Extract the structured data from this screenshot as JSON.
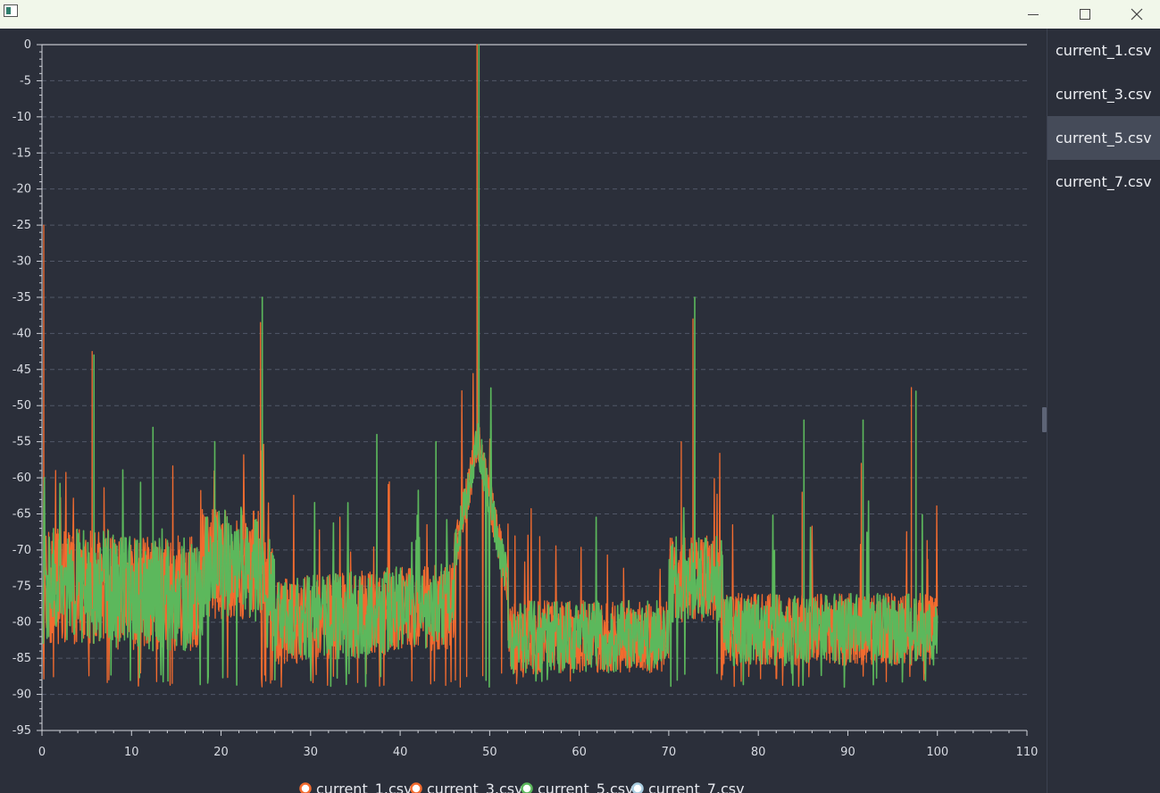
{
  "window": {
    "controls": {
      "minimize_icon": "minimize-icon",
      "maximize_icon": "maximize-icon",
      "close_icon": "close-icon"
    }
  },
  "file_list": {
    "items": [
      {
        "label": "current_1.csv",
        "selected": false
      },
      {
        "label": "current_3.csv",
        "selected": false
      },
      {
        "label": "current_5.csv",
        "selected": true
      },
      {
        "label": "current_7.csv",
        "selected": false
      }
    ]
  },
  "colors": {
    "series_orange": "#f26b2f",
    "series_green": "#5cb85c",
    "series_light_blue": "#a9cde0",
    "grid": "#525868",
    "axis": "#d0d3da",
    "background": "#2b2f3a"
  },
  "chart_data": {
    "type": "line",
    "title": "",
    "xlabel": "",
    "ylabel": "",
    "xlim": [
      0,
      110
    ],
    "ylim": [
      -95,
      0
    ],
    "x_ticks": [
      0,
      10,
      20,
      30,
      40,
      50,
      60,
      70,
      80,
      90,
      100,
      110
    ],
    "y_ticks": [
      0,
      -5,
      -10,
      -15,
      -20,
      -25,
      -30,
      -35,
      -40,
      -45,
      -50,
      -55,
      -60,
      -65,
      -70,
      -75,
      -80,
      -85,
      -90,
      -95
    ],
    "grid": "horizontal dashed",
    "legend_position": "bottom-center",
    "legend": [
      {
        "name": "current_1.csv",
        "color": "#f26b2f"
      },
      {
        "name": "current_3.csv",
        "color": "#f26b2f"
      },
      {
        "name": "current_5.csv",
        "color": "#5cb85c"
      },
      {
        "name": "current_7.csv",
        "color": "#a9cde0"
      }
    ],
    "noise_floor_db": [
      -89,
      -62
    ],
    "x_data_end": 100,
    "series": [
      {
        "name": "current_1.csv",
        "color": "#f26b2f",
        "peaks": [
          {
            "x": 0.2,
            "y": -25
          },
          {
            "x": 5.6,
            "y": -42.5
          },
          {
            "x": 24.4,
            "y": -38.5
          },
          {
            "x": 48.6,
            "y": 0
          },
          {
            "x": 72.7,
            "y": -38
          },
          {
            "x": 97.1,
            "y": -47.5
          }
        ]
      },
      {
        "name": "current_3.csv",
        "color": "#f26b2f",
        "peaks": [
          {
            "x": 48.6,
            "y": 0
          },
          {
            "x": 71.4,
            "y": -55
          },
          {
            "x": 84.9,
            "y": -62
          },
          {
            "x": 91.5,
            "y": -58
          }
        ]
      },
      {
        "name": "current_5.csv",
        "color": "#5cb85c",
        "peaks": [
          {
            "x": 5.8,
            "y": -43
          },
          {
            "x": 12.4,
            "y": -53
          },
          {
            "x": 19.3,
            "y": -55
          },
          {
            "x": 24.6,
            "y": -35
          },
          {
            "x": 37.4,
            "y": -54
          },
          {
            "x": 44.0,
            "y": -55
          },
          {
            "x": 48.8,
            "y": 0
          },
          {
            "x": 72.9,
            "y": -35
          },
          {
            "x": 85.1,
            "y": -52
          },
          {
            "x": 91.7,
            "y": -52
          },
          {
            "x": 97.6,
            "y": -48
          }
        ]
      },
      {
        "name": "current_7.csv",
        "color": "#a9cde0",
        "peaks": []
      }
    ]
  }
}
